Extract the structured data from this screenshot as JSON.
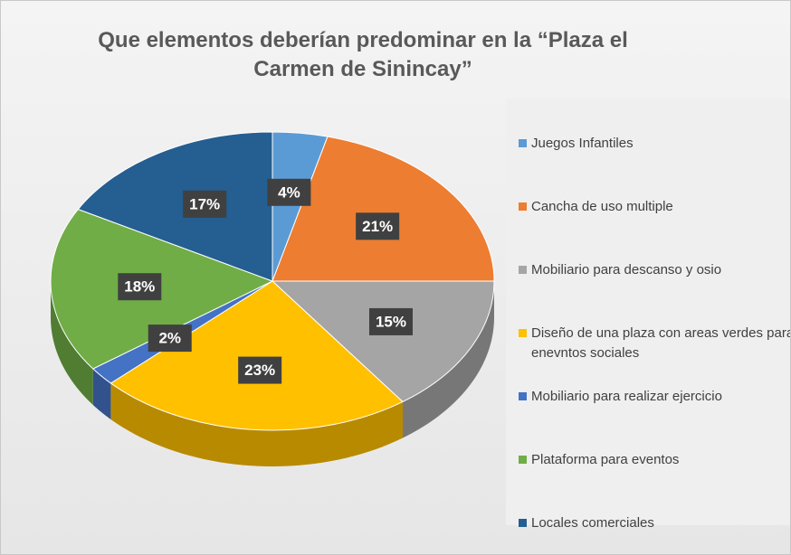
{
  "chart_data": {
    "type": "pie",
    "title": "Que elementos deberían predominar en la “Plaza el Carmen de Sinincay”",
    "categories": [
      "Juegos Infantiles",
      "Cancha de uso multiple",
      "Mobiliario para descanso y osio",
      "Diseño de una plaza con areas verdes para enevntos sociales",
      "Mobiliario para realizar ejercicio",
      "Plataforma para eventos",
      "Locales comerciales"
    ],
    "values": [
      4,
      21,
      15,
      23,
      2,
      18,
      17
    ],
    "value_labels": [
      "4%",
      "21%",
      "15%",
      "23%",
      "2%",
      "18%",
      "17%"
    ],
    "colors": [
      "#5b9bd5",
      "#ed7d31",
      "#a5a5a5",
      "#ffc000",
      "#4472c4",
      "#70ad47",
      "#255e91"
    ],
    "legend": "right"
  }
}
